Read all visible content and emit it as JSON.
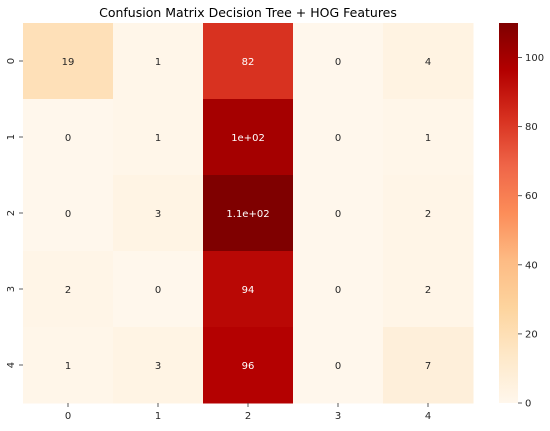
{
  "chart_data": {
    "type": "heatmap",
    "title": "Confusion Matrix Decision Tree + HOG Features",
    "xlabel": "",
    "ylabel": "",
    "x_tick_labels": [
      "0",
      "1",
      "2",
      "3",
      "4"
    ],
    "y_tick_labels": [
      "0",
      "1",
      "2",
      "3",
      "4"
    ],
    "values": [
      [
        19,
        1,
        82,
        0,
        4
      ],
      [
        0,
        1,
        100,
        0,
        1
      ],
      [
        0,
        3,
        110,
        0,
        2
      ],
      [
        2,
        0,
        94,
        0,
        2
      ],
      [
        1,
        3,
        96,
        0,
        7
      ]
    ],
    "annotations": [
      [
        "19",
        "1",
        "82",
        "0",
        "4"
      ],
      [
        "0",
        "1",
        "1e+02",
        "0",
        "1"
      ],
      [
        "0",
        "3",
        "1.1e+02",
        "0",
        "2"
      ],
      [
        "2",
        "0",
        "94",
        "0",
        "2"
      ],
      [
        "1",
        "3",
        "96",
        "0",
        "7"
      ]
    ],
    "colorbar": {
      "range": [
        0,
        110
      ],
      "ticks": [
        0,
        20,
        40,
        60,
        80,
        100
      ],
      "tick_labels": [
        "0",
        "20",
        "40",
        "60",
        "80",
        "100"
      ]
    },
    "colormap": "OrRd",
    "colormap_stops": [
      "#fff7ec",
      "#fee8c8",
      "#fdd49e",
      "#fdbb84",
      "#fc8d59",
      "#ef6548",
      "#d7301f",
      "#b30000",
      "#7f0000"
    ],
    "annotation_text_dark": "#262626",
    "annotation_text_light": "#ffffff"
  }
}
